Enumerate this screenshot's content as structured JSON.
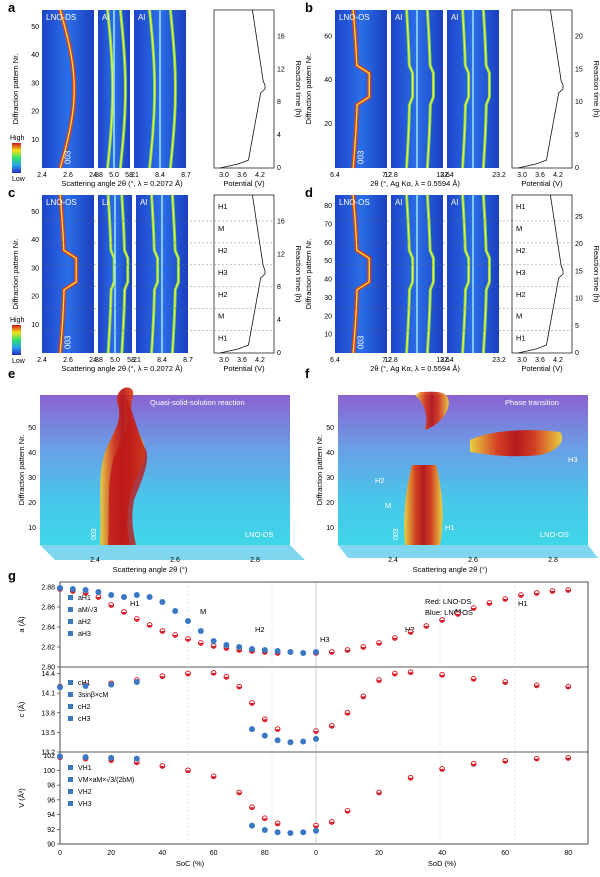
{
  "figure": {
    "panel_labels": [
      "a",
      "b",
      "c",
      "d",
      "e",
      "f",
      "g"
    ],
    "colorbar": {
      "high": "High",
      "low": "Low"
    },
    "xrd_panels": {
      "a": {
        "sample": "LNO-DS",
        "windows": [
          "LNO-DS",
          "Al",
          "Al"
        ],
        "y_label": "Diffraction pattern Nr.",
        "y_ticks": [
          "10",
          "20",
          "30",
          "40",
          "50"
        ],
        "x_label": "Scattering angle 2θ (°, λ = 0.2072 Å)",
        "x_ticks_1": [
          "2.4",
          "2.6",
          "2.8"
        ],
        "x_ticks_2": [
          "4.8",
          "5.0",
          "5.2"
        ],
        "x_ticks_3": [
          "8.1",
          "8.4",
          "8.7"
        ],
        "peaks": [
          "003",
          "101",
          "006",
          "102",
          "018",
          "110",
          "113"
        ],
        "potential_label": "Potential (V)",
        "potential_ticks": [
          "3.0",
          "3.6",
          "4.2"
        ],
        "time_label": "Reaction time (h)",
        "time_ticks": [
          "0",
          "4",
          "8",
          "12",
          "16"
        ]
      },
      "b": {
        "sample": "LNO-OS",
        "windows": [
          "LNO-OS",
          "Al",
          "Al"
        ],
        "y_label": "Diffraction pattern Nr.",
        "y_ticks": [
          "20",
          "40",
          "60"
        ],
        "x_label": "2θ (°, Ag Kα, λ = 0.5594 Å)",
        "x_ticks_1": [
          "6.4",
          "7.2"
        ],
        "x_ticks_2": [
          "12.8",
          "13.6"
        ],
        "x_ticks_3": [
          "22.4",
          "23.2"
        ],
        "peaks": [
          "003",
          "101",
          "006",
          "102",
          "018",
          "110"
        ],
        "potential_label": "Potential (V)",
        "potential_ticks": [
          "3.0",
          "3.6",
          "4.2"
        ],
        "time_label": "Reaction time (h)",
        "time_ticks": [
          "0",
          "5",
          "10",
          "15",
          "20"
        ]
      },
      "c": {
        "sample": "LNO-OS",
        "windows": [
          "LNO-OS",
          "Li",
          "Al",
          "Al"
        ],
        "y_label": "Diffraction pattern Nr.",
        "y_ticks": [
          "10",
          "20",
          "30",
          "40",
          "50"
        ],
        "x_label": "Scattering angle 2θ (°, λ = 0.2072 Å)",
        "x_ticks_1": [
          "2.4",
          "2.6",
          "2.8"
        ],
        "x_ticks_2": [
          "4.8",
          "5.0",
          "5.2"
        ],
        "x_ticks_3": [
          "8.1",
          "8.4",
          "8.7"
        ],
        "peaks": [
          "003",
          "201",
          "101",
          "110",
          "006",
          "102",
          "018",
          "110",
          "113"
        ],
        "phases": [
          "H1",
          "M",
          "H2",
          "H3",
          "H2",
          "M",
          "H1"
        ],
        "potential_label": "Potential (V)",
        "potential_ticks": [
          "3.0",
          "3.6",
          "4.2"
        ],
        "time_label": "Reaction time (h)",
        "time_ticks": [
          "0",
          "4",
          "8",
          "12",
          "16"
        ]
      },
      "d": {
        "sample": "LNO-OS",
        "windows": [
          "LNO-OS",
          "Al",
          "Al"
        ],
        "y_label": "Diffraction pattern Nr.",
        "y_ticks": [
          "10",
          "20",
          "30",
          "40",
          "50",
          "60",
          "70",
          "80"
        ],
        "x_label": "2θ (°, Ag Kα, λ = 0.5594 Å)",
        "x_ticks_1": [
          "6.4",
          "7.2"
        ],
        "x_ticks_2": [
          "12.8",
          "13.6"
        ],
        "x_ticks_3": [
          "22.4",
          "23.2"
        ],
        "peaks": [
          "003",
          "201",
          "110",
          "006",
          "102",
          "018",
          "110"
        ],
        "phases": [
          "H1",
          "M",
          "H2",
          "H3",
          "H2",
          "M",
          "H1"
        ],
        "potential_label": "Potential (V)",
        "potential_ticks": [
          "3.0",
          "3.6",
          "4.2"
        ],
        "time_label": "Reaction time (h)",
        "time_ticks": [
          "0",
          "5",
          "10",
          "15",
          "20",
          "25"
        ]
      }
    },
    "panel_e": {
      "title": "Quasi-solid-solution reaction",
      "corner": "LNO-DS",
      "peak": "003",
      "y_label": "Diffraction pattern Nr.",
      "y_ticks": [
        "10",
        "20",
        "30",
        "40",
        "50"
      ],
      "x_label": "Scattering angle 2θ (°)",
      "x_ticks": [
        "2.4",
        "2.6",
        "2.8"
      ]
    },
    "panel_f": {
      "title": "Phase transition",
      "corner": "LNO-OS",
      "peak": "003",
      "phases": [
        "H1",
        "M",
        "H2",
        "H3"
      ],
      "y_label": "Diffraction pattern Nr.",
      "y_ticks": [
        "10",
        "20",
        "30",
        "40",
        "50"
      ],
      "x_label": "Scattering angle 2θ (°)",
      "x_ticks": [
        "2.4",
        "2.6",
        "2.8"
      ]
    },
    "panel_g": {
      "legend_note": [
        "Red: LNO-DS",
        "Blue: LNO-OS"
      ],
      "x_label_left": "SoC (%)",
      "x_label_right": "SoD (%)",
      "x_ticks": [
        "0",
        "20",
        "40",
        "60",
        "80",
        "0",
        "20",
        "40",
        "60",
        "80"
      ],
      "subplots": [
        {
          "y_label": "a (Å)",
          "y_ticks": [
            "2.80",
            "2.82",
            "2.84",
            "2.86",
            "2.88"
          ],
          "ylim": [
            2.8,
            2.885
          ],
          "legend": [
            "aH1",
            "aM/√3",
            "aH2",
            "aH3"
          ],
          "phase_labels": [
            "H1",
            "M",
            "H2",
            "H3",
            "H2",
            "M",
            "H1"
          ]
        },
        {
          "y_label": "c (Å)",
          "y_ticks": [
            "13.2",
            "13.5",
            "13.8",
            "14.1",
            "14.4"
          ],
          "ylim": [
            13.2,
            14.5
          ],
          "legend": [
            "cH1",
            "3sinβ×cM",
            "cH2",
            "cH3"
          ]
        },
        {
          "y_label": "V (Å³)",
          "y_ticks": [
            "90",
            "92",
            "94",
            "96",
            "98",
            "100",
            "102"
          ],
          "ylim": [
            90,
            102.5
          ],
          "legend": [
            "VH1",
            "VM×aM×√3/(2bM)",
            "VH2",
            "VH3"
          ]
        }
      ]
    }
  },
  "chart_data": [
    {
      "type": "scatter",
      "title": "g: a lattice parameter",
      "xlabel": "SoC (%) | SoD (%)",
      "ylabel": "a (Å)",
      "ylim": [
        2.8,
        2.885
      ],
      "series": [
        {
          "name": "LNO-DS charge",
          "x": [
            0,
            5,
            10,
            15,
            20,
            25,
            30,
            35,
            40,
            45,
            50,
            55,
            60,
            65,
            70,
            75,
            80,
            85
          ],
          "values": [
            2.878,
            2.876,
            2.874,
            2.87,
            2.862,
            2.855,
            2.848,
            2.842,
            2.836,
            2.832,
            2.828,
            2.824,
            2.821,
            2.819,
            2.817,
            2.816,
            2.815,
            2.814
          ]
        },
        {
          "name": "LNO-DS discharge",
          "x": [
            0,
            5,
            10,
            15,
            20,
            25,
            30,
            35,
            40,
            45,
            50,
            55,
            60,
            65,
            70,
            75,
            80
          ],
          "values": [
            2.814,
            2.815,
            2.817,
            2.82,
            2.824,
            2.829,
            2.835,
            2.841,
            2.847,
            2.853,
            2.859,
            2.864,
            2.868,
            2.872,
            2.874,
            2.876,
            2.877
          ]
        },
        {
          "name": "LNO-OS aH1",
          "x": [
            0,
            5,
            10,
            15,
            20,
            25
          ],
          "values": [
            2.879,
            2.878,
            2.877,
            2.875,
            2.872,
            2.87
          ]
        },
        {
          "name": "LNO-OS aM/√3",
          "x": [
            30,
            35,
            40,
            45,
            50,
            55
          ],
          "values": [
            2.872,
            2.87,
            2.865,
            2.856,
            2.846,
            2.836
          ]
        },
        {
          "name": "LNO-OS aH2",
          "x": [
            60,
            65,
            70,
            75,
            80,
            85
          ],
          "values": [
            2.826,
            2.822,
            2.82,
            2.818,
            2.817,
            2.816
          ]
        },
        {
          "name": "LNO-OS aH3",
          "x": [
            90,
            95,
            100
          ],
          "values": [
            2.815,
            2.814,
            2.815
          ]
        }
      ]
    },
    {
      "type": "scatter",
      "title": "g: c lattice parameter",
      "xlabel": "SoC (%) | SoD (%)",
      "ylabel": "c (Å)",
      "ylim": [
        13.2,
        14.5
      ],
      "series": [
        {
          "name": "LNO-DS charge",
          "x": [
            0,
            10,
            20,
            30,
            40,
            50,
            60,
            65,
            70,
            75,
            80,
            85
          ],
          "values": [
            14.2,
            14.22,
            14.25,
            14.3,
            14.36,
            14.4,
            14.41,
            14.35,
            14.2,
            13.95,
            13.7,
            13.55
          ]
        },
        {
          "name": "LNO-DS discharge",
          "x": [
            0,
            5,
            10,
            15,
            20,
            25,
            30,
            40,
            50,
            60,
            70,
            80
          ],
          "values": [
            13.52,
            13.6,
            13.8,
            14.05,
            14.3,
            14.4,
            14.42,
            14.38,
            14.32,
            14.27,
            14.22,
            14.2
          ]
        },
        {
          "name": "LNO-OS cH1",
          "x": [
            0,
            10,
            20,
            30
          ],
          "values": [
            14.19,
            14.21,
            14.23,
            14.27
          ]
        },
        {
          "name": "LNO-OS cH3",
          "x": [
            75,
            80,
            85,
            90,
            95,
            100
          ],
          "values": [
            13.55,
            13.45,
            13.38,
            13.35,
            13.36,
            13.4
          ]
        }
      ]
    },
    {
      "type": "scatter",
      "title": "g: unit cell volume",
      "xlabel": "SoC (%) | SoD (%)",
      "ylabel": "V (Å³)",
      "ylim": [
        90,
        102.5
      ],
      "series": [
        {
          "name": "LNO-DS charge",
          "x": [
            0,
            10,
            20,
            30,
            40,
            50,
            60,
            70,
            75,
            80,
            85
          ],
          "values": [
            101.8,
            101.6,
            101.4,
            101.1,
            100.6,
            100.0,
            99.2,
            97.0,
            95.0,
            93.5,
            92.8
          ]
        },
        {
          "name": "LNO-DS discharge",
          "x": [
            0,
            5,
            10,
            20,
            30,
            40,
            50,
            60,
            70,
            80
          ],
          "values": [
            92.5,
            93.0,
            94.5,
            97.0,
            99.0,
            100.2,
            100.9,
            101.3,
            101.6,
            101.7
          ]
        },
        {
          "name": "LNO-OS VH1",
          "x": [
            0,
            10,
            20,
            30
          ],
          "values": [
            101.9,
            101.8,
            101.7,
            101.6
          ]
        },
        {
          "name": "LNO-OS VH3",
          "x": [
            75,
            80,
            85,
            90,
            95,
            100
          ],
          "values": [
            92.5,
            91.9,
            91.6,
            91.5,
            91.6,
            91.8
          ]
        }
      ]
    }
  ]
}
